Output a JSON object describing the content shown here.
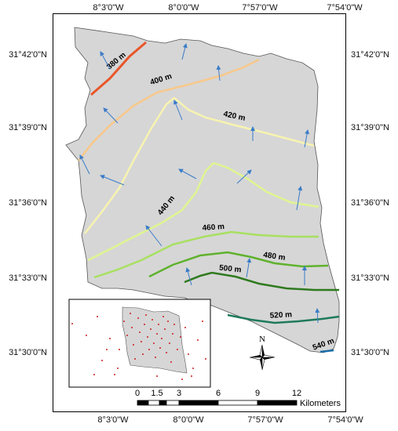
{
  "coordinates": {
    "top": [
      "8°3'0\"W",
      "8°0'0\"W",
      "7°57'0\"W",
      "7°54'0\"W"
    ],
    "bottom": [
      "8°3'0\"W",
      "8°0'0\"W",
      "7°57'0\"W",
      "7°54'0\"W"
    ],
    "left": [
      "31°42'0\"N",
      "31°39'0\"N",
      "31°36'0\"N",
      "31°33'0\"N",
      "31°30'0\"N"
    ],
    "right": [
      "31°42'0\"N",
      "31°39'0\"N",
      "31°36'0\"N",
      "31°33'0\"N",
      "31°30'0\"N"
    ]
  },
  "contours": [
    {
      "label": "380 m",
      "color": "#e8562a"
    },
    {
      "label": "400 m",
      "color": "#f8c88a"
    },
    {
      "label": "420 m",
      "color": "#f7f3b0"
    },
    {
      "label": "440 m",
      "color": "#dff590"
    },
    {
      "label": "460 m",
      "color": "#a8e060"
    },
    {
      "label": "480 m",
      "color": "#5fb22d"
    },
    {
      "label": "500 m",
      "color": "#2f7a1e"
    },
    {
      "label": "520 m",
      "color": "#1f7a5c"
    },
    {
      "label": "540 m",
      "color": "#1a6ea8"
    }
  ],
  "colors": {
    "study_area_fill": "#d6d6d6",
    "arrow": "#3a7cc8",
    "inset_points": "#cc1f1f"
  },
  "north_arrow": {
    "letter": "N",
    "icon": "compass-rose-icon"
  },
  "scale_bar": {
    "ticks": [
      "0",
      "1.5",
      "3",
      "6",
      "9",
      "12"
    ],
    "unit": "Kilometers"
  },
  "inset": {
    "description_icon": "inset-locator-map"
  }
}
